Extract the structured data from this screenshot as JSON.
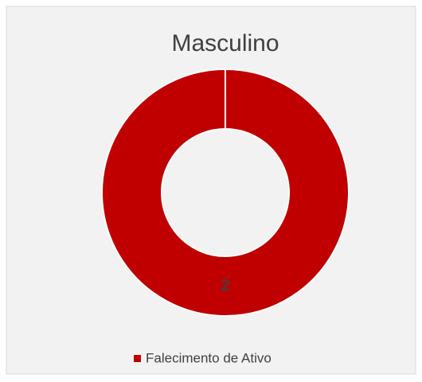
{
  "chart_data": {
    "type": "donut",
    "title": "Masculino",
    "categories": [
      "Falecimento de Ativo"
    ],
    "values": [
      2
    ],
    "colors": [
      "#c00000"
    ],
    "legend": "bottom"
  }
}
